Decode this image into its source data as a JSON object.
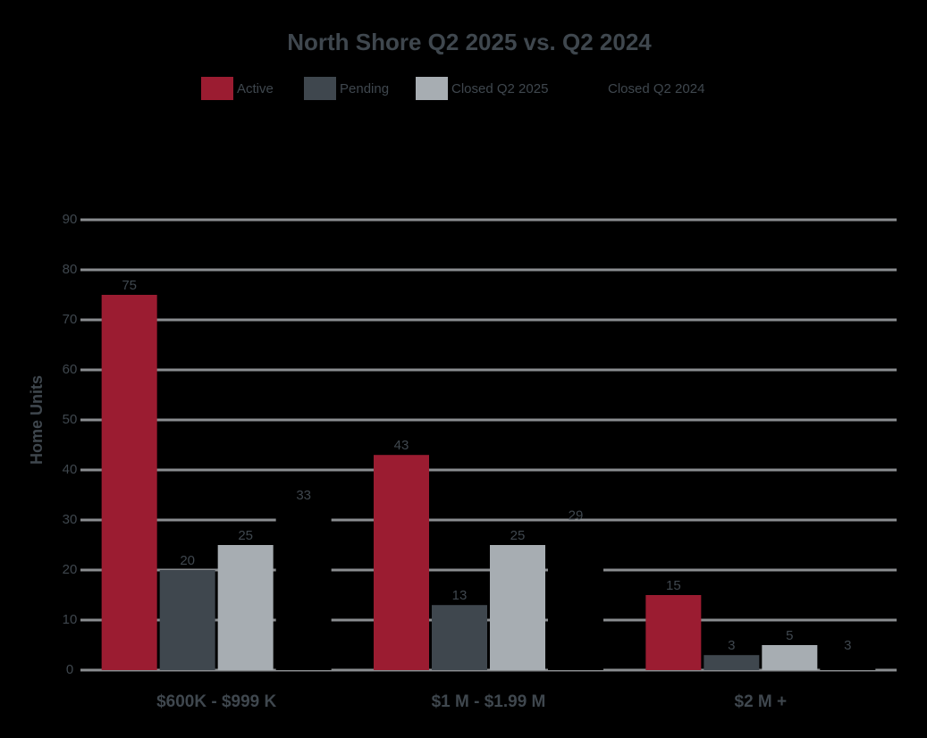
{
  "chart_data": {
    "type": "bar",
    "title": "North Shore Q2 2025 vs. Q2 2024",
    "y_label": "Home Units",
    "categories": [
      "$600K - $999 K",
      "$1 M - $1.99 M",
      "$2 M +"
    ],
    "series": [
      {
        "name": "Active",
        "color": "#9b1c31",
        "values": [
          75,
          43,
          15
        ]
      },
      {
        "name": "Pending",
        "color": "#3f474e",
        "values": [
          20,
          13,
          3
        ]
      },
      {
        "name": "Closed Q2 2025",
        "color": "#a7adb2",
        "values": [
          25,
          25,
          5
        ]
      },
      {
        "name": "Closed Q2 2024",
        "color": "#000000",
        "values": [
          33,
          29,
          3
        ]
      }
    ],
    "ylim": [
      0,
      90
    ],
    "yticks": [
      0,
      10,
      20,
      30,
      40,
      50,
      60,
      70,
      80,
      90
    ],
    "grid": true,
    "legend": "top"
  }
}
